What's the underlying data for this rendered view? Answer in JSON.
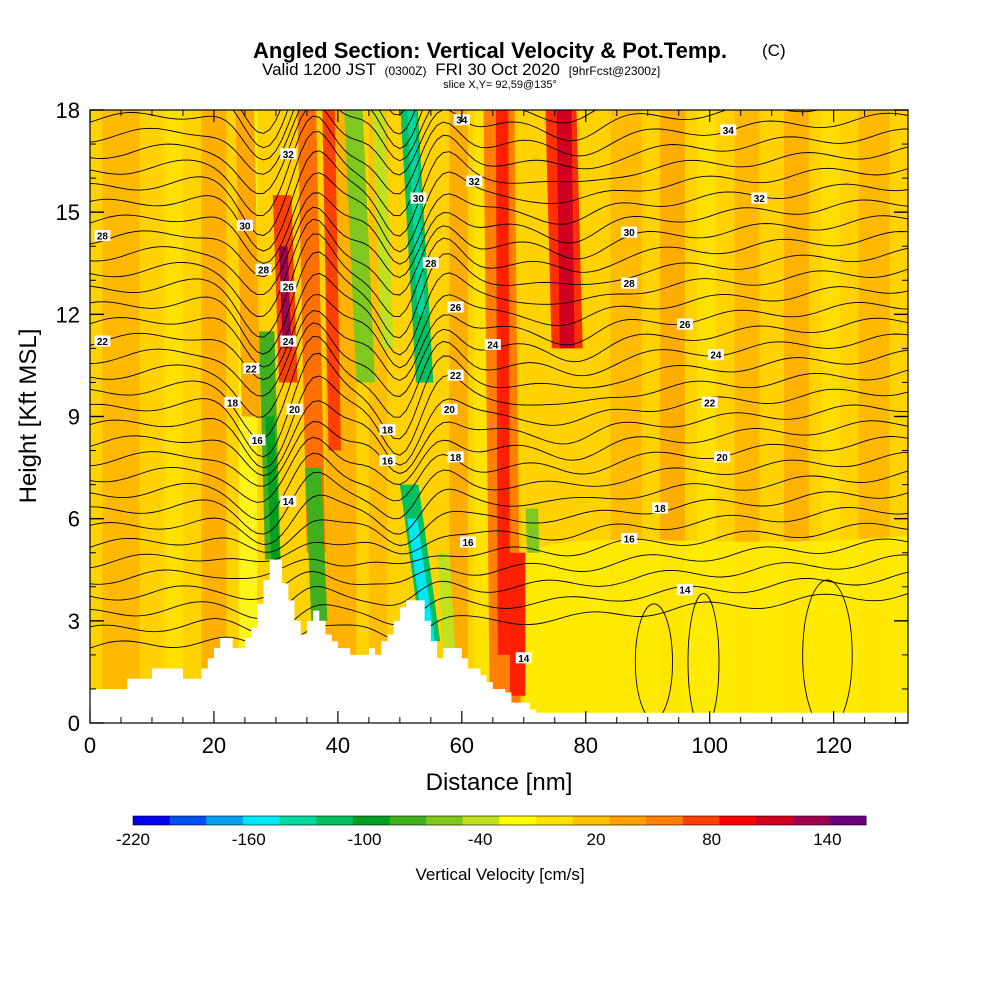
{
  "title": {
    "main": "Angled Section: Vertical Velocity & Pot.Temp.",
    "main_suffix": "(C)",
    "valid_prefix": "Valid 1200 JST",
    "valid_zulu": "(0300Z)",
    "valid_date": "FRI 30 Oct 2020",
    "forecast": "[9hrFcst@2300z]",
    "slice": "slice X,Y= 92,59@135°"
  },
  "chart_data": {
    "type": "heatmap",
    "xlabel": "Distance [nm]",
    "ylabel": "Height [Kft MSL]",
    "xlim": [
      0,
      132
    ],
    "ylim": [
      0,
      18
    ],
    "x_ticks": [
      0,
      20,
      40,
      60,
      80,
      100,
      120
    ],
    "y_ticks": [
      0,
      3,
      6,
      9,
      12,
      15,
      18
    ],
    "colorbar": {
      "label": "Vertical Velocity [cm/s]",
      "min": -220,
      "max": 160,
      "step": 20,
      "tick_labels": [
        "-220",
        "-160",
        "-100",
        "-40",
        "20",
        "80",
        "140"
      ],
      "tick_values": [
        -220,
        -160,
        -100,
        -40,
        20,
        80,
        140
      ],
      "colors": [
        "#0000ee",
        "#0050f0",
        "#00a0f0",
        "#00e8f8",
        "#00d8a0",
        "#00c060",
        "#00a020",
        "#40b020",
        "#80c820",
        "#c0e020",
        "#ffff00",
        "#ffe000",
        "#ffc000",
        "#ffa000",
        "#ff8000",
        "#ff4000",
        "#ff0000",
        "#d00020",
        "#a00050",
        "#6a0080"
      ]
    },
    "terrain_kft": [
      [
        0,
        1.0
      ],
      [
        5,
        1.0
      ],
      [
        6,
        1.3
      ],
      [
        9,
        1.3
      ],
      [
        10,
        1.6
      ],
      [
        14,
        1.6
      ],
      [
        15,
        1.3
      ],
      [
        17,
        1.3
      ],
      [
        18,
        1.6
      ],
      [
        19,
        1.9
      ],
      [
        20,
        2.2
      ],
      [
        21,
        2.5
      ],
      [
        22,
        2.5
      ],
      [
        23,
        2.2
      ],
      [
        24,
        2.2
      ],
      [
        25,
        2.5
      ],
      [
        26,
        2.8
      ],
      [
        27,
        3.5
      ],
      [
        28,
        4.2
      ],
      [
        29,
        4.8
      ],
      [
        30,
        4.8
      ],
      [
        31,
        4.1
      ],
      [
        32,
        3.6
      ],
      [
        33,
        3.0
      ],
      [
        34,
        2.6
      ],
      [
        35,
        3.0
      ],
      [
        36,
        3.3
      ],
      [
        37,
        3.0
      ],
      [
        38,
        2.6
      ],
      [
        39,
        2.4
      ],
      [
        40,
        2.2
      ],
      [
        42,
        2.0
      ],
      [
        44,
        2.0
      ],
      [
        45,
        2.2
      ],
      [
        46,
        2.0
      ],
      [
        47,
        2.4
      ],
      [
        48,
        2.6
      ],
      [
        49,
        3.0
      ],
      [
        50,
        3.4
      ],
      [
        51,
        3.6
      ],
      [
        53,
        3.6
      ],
      [
        54,
        3.0
      ],
      [
        55,
        2.4
      ],
      [
        56,
        1.9
      ],
      [
        57,
        2.2
      ],
      [
        59,
        2.2
      ],
      [
        60,
        1.9
      ],
      [
        61,
        1.6
      ],
      [
        63,
        1.4
      ],
      [
        64,
        1.2
      ],
      [
        65,
        1.0
      ],
      [
        67,
        0.9
      ],
      [
        68,
        0.6
      ],
      [
        70,
        0.6
      ],
      [
        71,
        0.4
      ],
      [
        72,
        0.3
      ],
      [
        132,
        0.3
      ]
    ],
    "annotations": [
      "14",
      "16",
      "18",
      "20",
      "22",
      "24",
      "26",
      "28",
      "30",
      "32",
      "34"
    ]
  }
}
